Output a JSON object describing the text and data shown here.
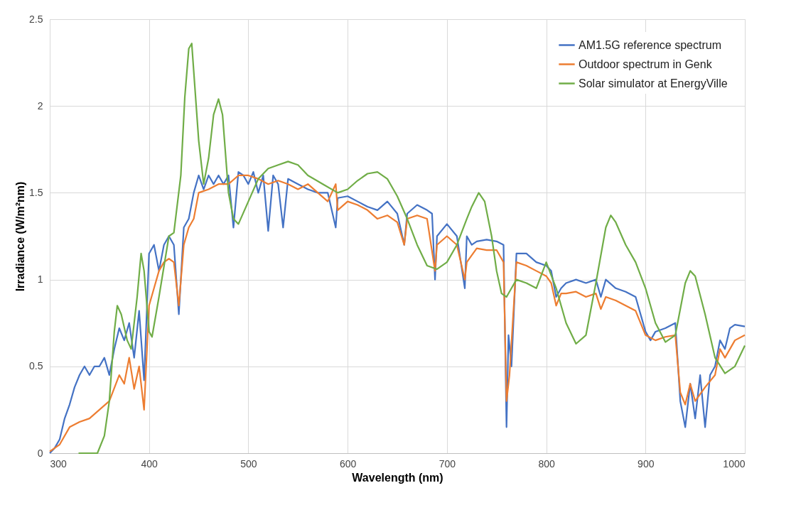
{
  "chart_data": {
    "type": "line",
    "xlabel": "Wavelength (nm)",
    "ylabel": "Irradiance (W/m²nm)",
    "xlim": [
      300,
      1000
    ],
    "xticks": [
      300,
      400,
      500,
      600,
      700,
      800,
      900,
      1000
    ],
    "ylim": [
      0,
      2.5
    ],
    "yticks": [
      0,
      0.5,
      1,
      1.5,
      2,
      2.5
    ],
    "grid": true,
    "legend": "top right",
    "marker": "none",
    "line_style": "solid",
    "series": [
      {
        "name": "AM1.5G reference spectrum",
        "color": "#4472c4",
        "x": [
          300,
          305,
          310,
          315,
          320,
          325,
          330,
          335,
          340,
          345,
          350,
          355,
          360,
          365,
          370,
          375,
          380,
          385,
          390,
          395,
          400,
          405,
          410,
          415,
          420,
          425,
          430,
          435,
          440,
          445,
          450,
          455,
          460,
          465,
          470,
          475,
          480,
          485,
          490,
          495,
          500,
          505,
          510,
          515,
          520,
          525,
          530,
          535,
          540,
          550,
          560,
          570,
          580,
          588,
          590,
          600,
          610,
          620,
          630,
          640,
          650,
          657,
          660,
          670,
          680,
          685,
          688,
          690,
          700,
          710,
          718,
          720,
          725,
          730,
          740,
          750,
          757,
          760,
          762,
          765,
          770,
          780,
          790,
          800,
          805,
          810,
          815,
          820,
          830,
          840,
          850,
          855,
          860,
          870,
          880,
          890,
          900,
          905,
          910,
          920,
          930,
          935,
          940,
          945,
          950,
          955,
          960,
          965,
          970,
          975,
          980,
          985,
          990,
          1000
        ],
        "values": [
          0.0,
          0.03,
          0.08,
          0.2,
          0.28,
          0.38,
          0.45,
          0.5,
          0.45,
          0.5,
          0.5,
          0.55,
          0.45,
          0.6,
          0.72,
          0.65,
          0.75,
          0.55,
          0.82,
          0.42,
          1.15,
          1.2,
          1.05,
          1.2,
          1.25,
          1.2,
          0.8,
          1.3,
          1.35,
          1.5,
          1.6,
          1.52,
          1.6,
          1.55,
          1.6,
          1.55,
          1.6,
          1.3,
          1.62,
          1.6,
          1.55,
          1.62,
          1.5,
          1.6,
          1.28,
          1.6,
          1.55,
          1.3,
          1.58,
          1.55,
          1.52,
          1.5,
          1.5,
          1.3,
          1.47,
          1.48,
          1.45,
          1.42,
          1.4,
          1.45,
          1.38,
          1.2,
          1.38,
          1.43,
          1.4,
          1.38,
          1.0,
          1.25,
          1.32,
          1.25,
          0.95,
          1.25,
          1.2,
          1.22,
          1.23,
          1.22,
          1.2,
          0.15,
          0.68,
          0.5,
          1.15,
          1.15,
          1.1,
          1.08,
          1.05,
          0.9,
          0.95,
          0.98,
          1.0,
          0.98,
          1.0,
          0.9,
          1.0,
          0.95,
          0.93,
          0.9,
          0.7,
          0.65,
          0.7,
          0.72,
          0.75,
          0.3,
          0.15,
          0.4,
          0.2,
          0.45,
          0.15,
          0.45,
          0.5,
          0.65,
          0.6,
          0.72,
          0.74,
          0.73
        ]
      },
      {
        "name": "Outdoor spectrum in Genk",
        "color": "#ed7d31",
        "x": [
          300,
          310,
          320,
          330,
          340,
          350,
          360,
          370,
          375,
          380,
          385,
          390,
          395,
          400,
          405,
          410,
          415,
          420,
          425,
          430,
          435,
          440,
          445,
          450,
          460,
          470,
          480,
          490,
          500,
          510,
          520,
          530,
          540,
          550,
          560,
          570,
          580,
          588,
          590,
          600,
          610,
          620,
          630,
          640,
          650,
          657,
          660,
          670,
          680,
          688,
          690,
          700,
          710,
          718,
          720,
          730,
          740,
          750,
          757,
          760,
          763,
          770,
          780,
          790,
          800,
          805,
          810,
          815,
          820,
          830,
          840,
          850,
          855,
          860,
          870,
          880,
          890,
          900,
          910,
          920,
          930,
          935,
          940,
          945,
          950,
          960,
          970,
          975,
          980,
          990,
          1000
        ],
        "values": [
          0.01,
          0.05,
          0.15,
          0.18,
          0.2,
          0.25,
          0.3,
          0.45,
          0.4,
          0.55,
          0.37,
          0.5,
          0.25,
          0.85,
          0.95,
          1.05,
          1.1,
          1.12,
          1.1,
          0.85,
          1.2,
          1.3,
          1.35,
          1.5,
          1.52,
          1.55,
          1.55,
          1.6,
          1.6,
          1.58,
          1.55,
          1.57,
          1.55,
          1.52,
          1.55,
          1.5,
          1.45,
          1.55,
          1.4,
          1.45,
          1.43,
          1.4,
          1.35,
          1.37,
          1.33,
          1.2,
          1.35,
          1.37,
          1.35,
          1.05,
          1.2,
          1.25,
          1.2,
          1.0,
          1.1,
          1.18,
          1.17,
          1.17,
          1.1,
          0.3,
          0.45,
          1.1,
          1.08,
          1.05,
          1.02,
          0.98,
          0.85,
          0.92,
          0.92,
          0.93,
          0.9,
          0.92,
          0.83,
          0.9,
          0.88,
          0.85,
          0.82,
          0.68,
          0.65,
          0.67,
          0.68,
          0.35,
          0.28,
          0.4,
          0.3,
          0.38,
          0.45,
          0.6,
          0.55,
          0.65,
          0.68
        ]
      },
      {
        "name": "Solar simulator at EnergyVille",
        "color": "#70ad47",
        "x": [
          329,
          348,
          355,
          360,
          365,
          368,
          372,
          378,
          382,
          388,
          392,
          395,
          400,
          403,
          410,
          420,
          425,
          432,
          436,
          440,
          443,
          450,
          455,
          460,
          465,
          470,
          474,
          480,
          485,
          490,
          500,
          510,
          520,
          530,
          540,
          550,
          560,
          575,
          590,
          600,
          610,
          620,
          630,
          640,
          650,
          660,
          670,
          680,
          690,
          700,
          710,
          720,
          725,
          732,
          738,
          745,
          750,
          755,
          760,
          765,
          770,
          780,
          790,
          800,
          810,
          820,
          830,
          840,
          850,
          860,
          865,
          870,
          880,
          890,
          900,
          910,
          920,
          930,
          940,
          945,
          950,
          960,
          970,
          980,
          990,
          1000
        ],
        "values": [
          0,
          0,
          0.1,
          0.3,
          0.7,
          0.85,
          0.8,
          0.65,
          0.6,
          0.9,
          1.15,
          1.05,
          0.7,
          0.67,
          0.9,
          1.25,
          1.27,
          1.6,
          2.05,
          2.33,
          2.36,
          1.8,
          1.55,
          1.7,
          1.95,
          2.04,
          1.95,
          1.5,
          1.35,
          1.32,
          1.45,
          1.58,
          1.64,
          1.66,
          1.68,
          1.66,
          1.6,
          1.55,
          1.5,
          1.52,
          1.57,
          1.61,
          1.62,
          1.58,
          1.48,
          1.35,
          1.2,
          1.08,
          1.06,
          1.1,
          1.2,
          1.35,
          1.42,
          1.5,
          1.45,
          1.25,
          1.05,
          0.92,
          0.9,
          0.95,
          1.0,
          0.98,
          0.95,
          1.1,
          0.95,
          0.75,
          0.63,
          0.68,
          0.98,
          1.3,
          1.37,
          1.33,
          1.2,
          1.1,
          0.95,
          0.75,
          0.64,
          0.68,
          0.98,
          1.05,
          1.02,
          0.8,
          0.55,
          0.46,
          0.5,
          0.62
        ]
      }
    ]
  }
}
